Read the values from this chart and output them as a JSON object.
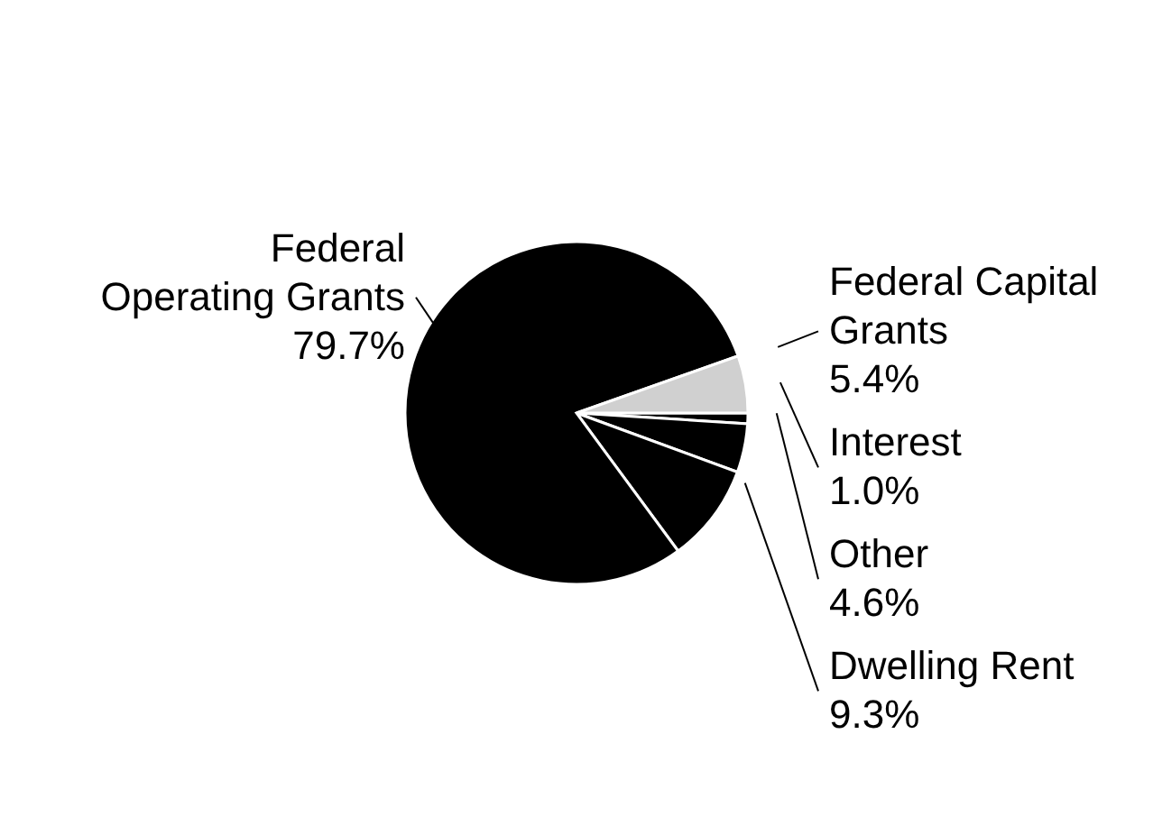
{
  "chart_data": {
    "type": "pie",
    "categories": [
      "Interest",
      "Other",
      "Dwelling Rent",
      "Federal Operating Grants",
      "Federal Capital Grants"
    ],
    "values": [
      1.0,
      4.6,
      9.3,
      79.7,
      5.4
    ],
    "value_labels": [
      "1.0%",
      "4.6%",
      "9.3%",
      "79.7%",
      "5.4%"
    ],
    "colors": [
      "#000000",
      "#000000",
      "#000000",
      "#000000",
      "#d0d0d0"
    ]
  }
}
